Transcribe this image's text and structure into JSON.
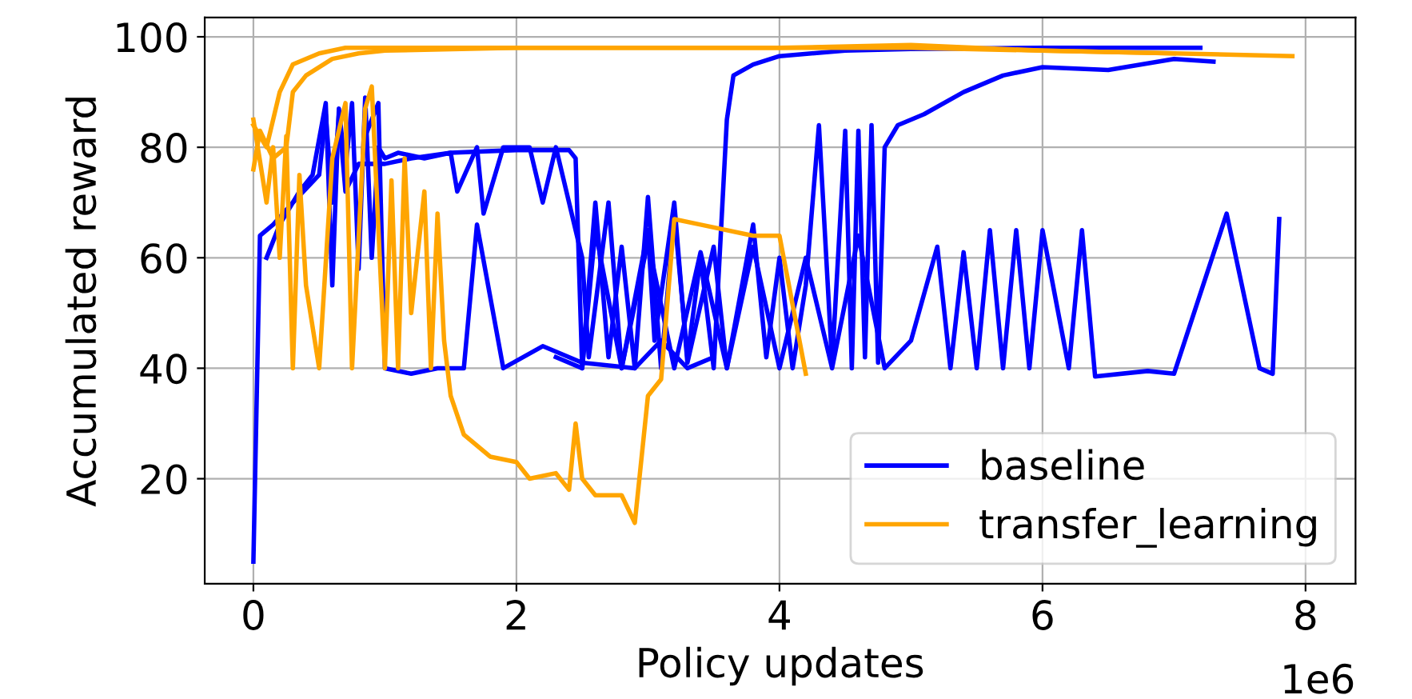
{
  "chart_data": {
    "type": "line",
    "xlabel": "Policy updates",
    "ylabel": "Accumulated reward",
    "xlim": [
      -0.37,
      8.38
    ],
    "ylim": [
      1,
      103.5
    ],
    "xticks": [
      0,
      2,
      4,
      6,
      8
    ],
    "yticks": [
      20,
      40,
      60,
      80,
      100
    ],
    "grid": true,
    "legend": "bottom right",
    "line_style": "solid",
    "marker": "none",
    "annotations": [
      "1e6"
    ],
    "series": [
      {
        "name": "baseline",
        "color": "#0000ff",
        "x": [
          0,
          0.05,
          0.15,
          0.3,
          0.5,
          0.55,
          0.6,
          0.65,
          0.7,
          0.8,
          1.0,
          1.2,
          1.5,
          2.0,
          2.4,
          2.45,
          2.5,
          2.6,
          2.7,
          2.8,
          2.9,
          3.0,
          3.1,
          3.2,
          3.3,
          3.4,
          3.5,
          3.6,
          3.65,
          3.8,
          4.0,
          4.5,
          5.0,
          6.0,
          7.2
        ],
        "values": [
          5,
          64,
          66,
          70,
          75,
          86,
          70,
          86,
          72,
          77,
          77,
          78,
          79,
          79.5,
          79.5,
          78,
          40,
          70,
          42,
          62,
          40,
          71,
          40,
          68,
          42,
          60,
          40,
          85,
          93,
          95,
          96.5,
          97.5,
          97.8,
          98,
          98
        ]
      },
      {
        "color": "#0000ff",
        "x": [
          0.1,
          0.2,
          0.35,
          0.45,
          0.55,
          0.6,
          0.65,
          0.7,
          0.75,
          0.8,
          0.85,
          0.9,
          0.95,
          1.0,
          1.1,
          1.3,
          1.5,
          1.55,
          1.7,
          1.75,
          1.9,
          2.1,
          2.2,
          2.3,
          2.5,
          2.55,
          2.7,
          2.8,
          3.0,
          3.05,
          3.2,
          3.3,
          3.5,
          3.6,
          3.8,
          3.9,
          4.0,
          4.1,
          4.2,
          4.3,
          4.4,
          4.5,
          4.55,
          4.6,
          4.65,
          4.7,
          4.75,
          4.8,
          4.9,
          5.1,
          5.4,
          5.7,
          6.0,
          6.5,
          7.0,
          7.3
        ],
        "values": [
          60,
          66,
          72,
          75,
          88,
          55,
          87,
          76,
          88,
          58,
          89,
          60,
          80,
          78,
          79,
          78,
          79,
          72,
          80,
          68,
          80,
          80,
          70,
          80,
          60,
          42,
          70,
          40,
          65,
          45,
          70,
          41,
          62,
          40,
          66,
          42,
          60,
          40,
          55,
          84,
          41,
          83,
          40,
          83,
          42,
          84,
          41,
          80,
          84,
          86,
          90,
          93,
          94.5,
          94,
          96,
          95.5
        ]
      },
      {
        "color": "#0000ff",
        "x": [
          2.3,
          2.5,
          2.6,
          2.8,
          3.0,
          3.2,
          3.4,
          3.6,
          3.8,
          4.0,
          4.2,
          4.4,
          4.6,
          4.8,
          5.0,
          5.2,
          5.3,
          5.4,
          5.5,
          5.6,
          5.7,
          5.8,
          5.9,
          6.0,
          6.2,
          6.3,
          6.4,
          6.8,
          7.0,
          7.4,
          7.65,
          7.75,
          7.8
        ],
        "values": [
          42,
          40,
          65,
          40,
          63,
          40,
          61,
          40,
          62,
          40,
          60,
          40,
          64,
          40,
          45,
          62,
          40,
          61,
          40,
          65,
          40,
          65,
          40,
          65,
          40,
          65,
          38.5,
          39.5,
          39,
          68,
          40,
          39,
          67
        ]
      },
      {
        "color": "#0000ff",
        "x": [
          0.85,
          0.95,
          1.0,
          1.2,
          1.4,
          1.6,
          1.7,
          1.9,
          2.2,
          2.5,
          2.9,
          3.1,
          3.3,
          3.5
        ],
        "values": [
          82,
          88,
          40,
          39,
          40,
          40,
          66,
          40,
          44,
          41,
          40,
          45,
          40,
          42
        ]
      },
      {
        "name": "transfer_learning",
        "color": "#ffa500",
        "x": [
          0,
          0.1,
          0.2,
          0.3,
          0.5,
          0.7,
          1.0,
          1.5,
          2.0,
          3.0,
          4.0,
          5.0,
          6.0,
          7.0,
          7.9
        ],
        "values": [
          84,
          80,
          90,
          95,
          97,
          98,
          98,
          98,
          98,
          98,
          98,
          98,
          97.5,
          97,
          96.5
        ]
      },
      {
        "color": "#ffa500",
        "x": [
          0,
          0.05,
          0.15,
          0.25,
          0.3,
          0.4,
          0.6,
          0.8,
          1.0,
          2.0,
          3.0,
          4.0,
          5.0,
          6.0,
          7.0
        ],
        "values": [
          76,
          83,
          78,
          80,
          90,
          93,
          96,
          97,
          97.5,
          98,
          98,
          98,
          98.5,
          97.5,
          97
        ]
      },
      {
        "color": "#ffa500",
        "x": [
          0,
          0.1,
          0.15,
          0.2,
          0.25,
          0.3,
          0.35,
          0.4,
          0.5,
          0.6,
          0.7,
          0.75,
          0.85,
          0.9,
          1.0,
          1.05,
          1.1,
          1.15,
          1.2,
          1.3,
          1.35,
          1.4,
          1.45,
          1.5,
          1.6,
          1.7,
          1.8,
          2.0,
          2.1,
          2.3,
          2.4,
          2.45,
          2.5,
          2.6,
          2.8,
          2.9,
          3.0,
          3.1,
          3.2,
          3.4,
          3.8,
          4.0,
          4.2
        ],
        "values": [
          85,
          70,
          80,
          60,
          82,
          40,
          75,
          55,
          40,
          78,
          88,
          40,
          87,
          91,
          40,
          74,
          40,
          78,
          50,
          72,
          40,
          68,
          45,
          35,
          28,
          26,
          24,
          23,
          20,
          21,
          18,
          30,
          20,
          17,
          17,
          12,
          35,
          38,
          67,
          66,
          64,
          64,
          39
        ]
      }
    ]
  }
}
